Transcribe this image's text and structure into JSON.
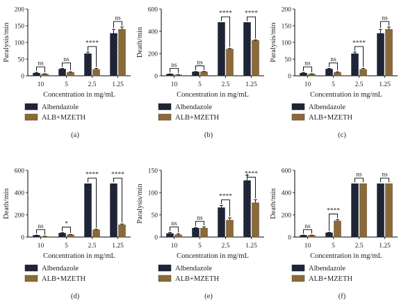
{
  "colors": {
    "albendazole": "#1b2030",
    "alb_mzeth": "#8a6a38"
  },
  "chart_data": [
    {
      "panel": "(a)",
      "type": "bar",
      "ylabel": "Paralysis/min",
      "xlabel": "Concentration in mg/mL",
      "ylim": [
        0,
        200
      ],
      "yticks": [
        0,
        50,
        100,
        150,
        200
      ],
      "categories": [
        "10",
        "5",
        "2.5",
        "1.25"
      ],
      "series": [
        {
          "name": "Albendazole",
          "values": [
            8,
            20,
            66,
            127
          ],
          "errors": [
            2,
            2,
            5,
            12
          ]
        },
        {
          "name": "ALB+MZETH",
          "values": [
            5,
            10,
            19,
            139
          ],
          "errors": [
            1,
            2,
            3,
            7
          ]
        }
      ],
      "significance": [
        "ns",
        "ns",
        "****",
        "ns"
      ],
      "legend": "bottom"
    },
    {
      "panel": "(b)",
      "type": "bar",
      "ylabel": "Death/min",
      "xlabel": "Concentration in mg/mL",
      "ylim": [
        0,
        600
      ],
      "yticks": [
        0,
        200,
        400,
        600
      ],
      "categories": [
        "10",
        "5",
        "2.5",
        "1.25"
      ],
      "series": [
        {
          "name": "Albendazole",
          "values": [
            15,
            35,
            480,
            480
          ],
          "errors": [
            2,
            3,
            0,
            0
          ]
        },
        {
          "name": "ALB+MZETH",
          "values": [
            8,
            35,
            240,
            318
          ],
          "errors": [
            2,
            4,
            5,
            5
          ]
        }
      ],
      "significance": [
        "ns",
        "ns",
        "****",
        "****"
      ],
      "legend": "bottom"
    },
    {
      "panel": "(c)",
      "type": "bar",
      "ylabel": "Paralysis/min",
      "xlabel": "Concentration in mg/mL",
      "ylim": [
        0,
        200
      ],
      "yticks": [
        0,
        50,
        100,
        150,
        200
      ],
      "categories": [
        "10",
        "5",
        "2.5",
        "1.25"
      ],
      "series": [
        {
          "name": "Albendazole",
          "values": [
            8,
            20,
            66,
            127
          ],
          "errors": [
            2,
            2,
            5,
            12
          ]
        },
        {
          "name": "ALB+MZETH",
          "values": [
            5,
            10,
            19,
            139
          ],
          "errors": [
            1,
            2,
            3,
            7
          ]
        }
      ],
      "significance": [
        "ns",
        "ns",
        "****",
        "ns"
      ],
      "legend": "bottom"
    },
    {
      "panel": "(d)",
      "type": "bar",
      "ylabel": "Death/min",
      "xlabel": "Concentration in mg/mL",
      "ylim": [
        0,
        600
      ],
      "yticks": [
        0,
        200,
        400,
        600
      ],
      "categories": [
        "10",
        "5",
        "2.5",
        "1.25"
      ],
      "series": [
        {
          "name": "Albendazole",
          "values": [
            15,
            35,
            480,
            480
          ],
          "errors": [
            2,
            4,
            0,
            0
          ]
        },
        {
          "name": "ALB+MZETH",
          "values": [
            5,
            20,
            65,
            110
          ],
          "errors": [
            2,
            3,
            5,
            8
          ]
        }
      ],
      "significance": [
        "ns",
        "*",
        "****",
        "****"
      ],
      "legend": "bottom"
    },
    {
      "panel": "(e)",
      "type": "bar",
      "ylabel": "Paralysis/min",
      "xlabel": "Concentration in mg/mL",
      "ylim": [
        0,
        150
      ],
      "yticks": [
        0,
        50,
        100,
        150
      ],
      "categories": [
        "10",
        "5",
        "2.5",
        "1.25"
      ],
      "series": [
        {
          "name": "Albendazole",
          "values": [
            8,
            20,
            66,
            127
          ],
          "errors": [
            2,
            1,
            5,
            12
          ]
        },
        {
          "name": "ALB+MZETH",
          "values": [
            5,
            20,
            38,
            77
          ],
          "errors": [
            2,
            3,
            5,
            7
          ]
        }
      ],
      "significance": [
        "ns",
        "ns",
        "****",
        "****"
      ],
      "legend": "bottom"
    },
    {
      "panel": "(f)",
      "type": "bar",
      "ylabel": "Death/min",
      "xlabel": "Concentration in mg/mL",
      "ylim": [
        0,
        600
      ],
      "yticks": [
        0,
        200,
        400,
        600
      ],
      "categories": [
        "10",
        "5",
        "2.5",
        "1.25"
      ],
      "series": [
        {
          "name": "Albendazole",
          "values": [
            15,
            38,
            480,
            480
          ],
          "errors": [
            2,
            4,
            0,
            0
          ]
        },
        {
          "name": "ALB+MZETH",
          "values": [
            15,
            145,
            480,
            480
          ],
          "errors": [
            2,
            12,
            0,
            0
          ]
        }
      ],
      "significance": [
        "ns",
        "****",
        "ns",
        "ns"
      ],
      "legend": "bottom"
    }
  ]
}
